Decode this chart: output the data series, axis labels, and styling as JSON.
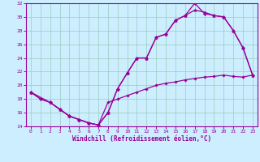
{
  "xlabel": "Windchill (Refroidissement éolien,°C)",
  "bg_color": "#cceeff",
  "line_color": "#990099",
  "grid_color": "#99ccbb",
  "xlim": [
    -0.5,
    23.5
  ],
  "ylim": [
    14,
    32
  ],
  "xticks": [
    0,
    1,
    2,
    3,
    4,
    5,
    6,
    7,
    8,
    9,
    10,
    11,
    12,
    13,
    14,
    15,
    16,
    17,
    18,
    19,
    20,
    21,
    22,
    23
  ],
  "yticks": [
    14,
    16,
    18,
    20,
    22,
    24,
    26,
    28,
    30,
    32
  ],
  "s1_x": [
    0,
    1,
    2,
    3,
    4,
    5,
    6,
    7,
    8,
    9,
    10,
    11,
    12,
    13,
    14,
    15,
    16,
    17,
    18,
    19,
    20,
    21,
    22,
    23
  ],
  "s1_y": [
    19.0,
    18.0,
    17.5,
    16.5,
    15.5,
    15.0,
    14.5,
    14.2,
    16.0,
    19.5,
    21.8,
    24.0,
    24.0,
    27.0,
    27.5,
    29.5,
    30.2,
    32.0,
    30.5,
    30.2,
    30.0,
    28.0,
    25.5,
    21.5
  ],
  "s2_x": [
    0,
    2,
    3,
    4,
    5,
    6,
    7,
    8,
    9,
    10,
    11,
    12,
    13,
    14,
    15,
    16,
    17,
    18,
    19,
    20,
    21,
    22,
    23
  ],
  "s2_y": [
    19.0,
    17.5,
    16.5,
    15.5,
    15.0,
    14.5,
    14.2,
    16.0,
    19.5,
    21.8,
    24.0,
    24.0,
    27.0,
    27.5,
    29.5,
    30.2,
    31.0,
    30.7,
    30.2,
    30.0,
    28.0,
    25.5,
    21.5
  ],
  "s3_x": [
    0,
    1,
    2,
    3,
    4,
    5,
    6,
    7,
    8,
    9,
    10,
    11,
    12,
    13,
    14,
    15,
    16,
    17,
    18,
    19,
    20,
    21,
    22,
    23
  ],
  "s3_y": [
    19.0,
    18.0,
    17.5,
    16.5,
    15.5,
    15.0,
    14.5,
    14.2,
    17.5,
    18.0,
    18.5,
    19.0,
    19.5,
    20.0,
    20.3,
    20.5,
    20.8,
    21.0,
    21.2,
    21.3,
    21.5,
    21.3,
    21.2,
    21.5
  ]
}
